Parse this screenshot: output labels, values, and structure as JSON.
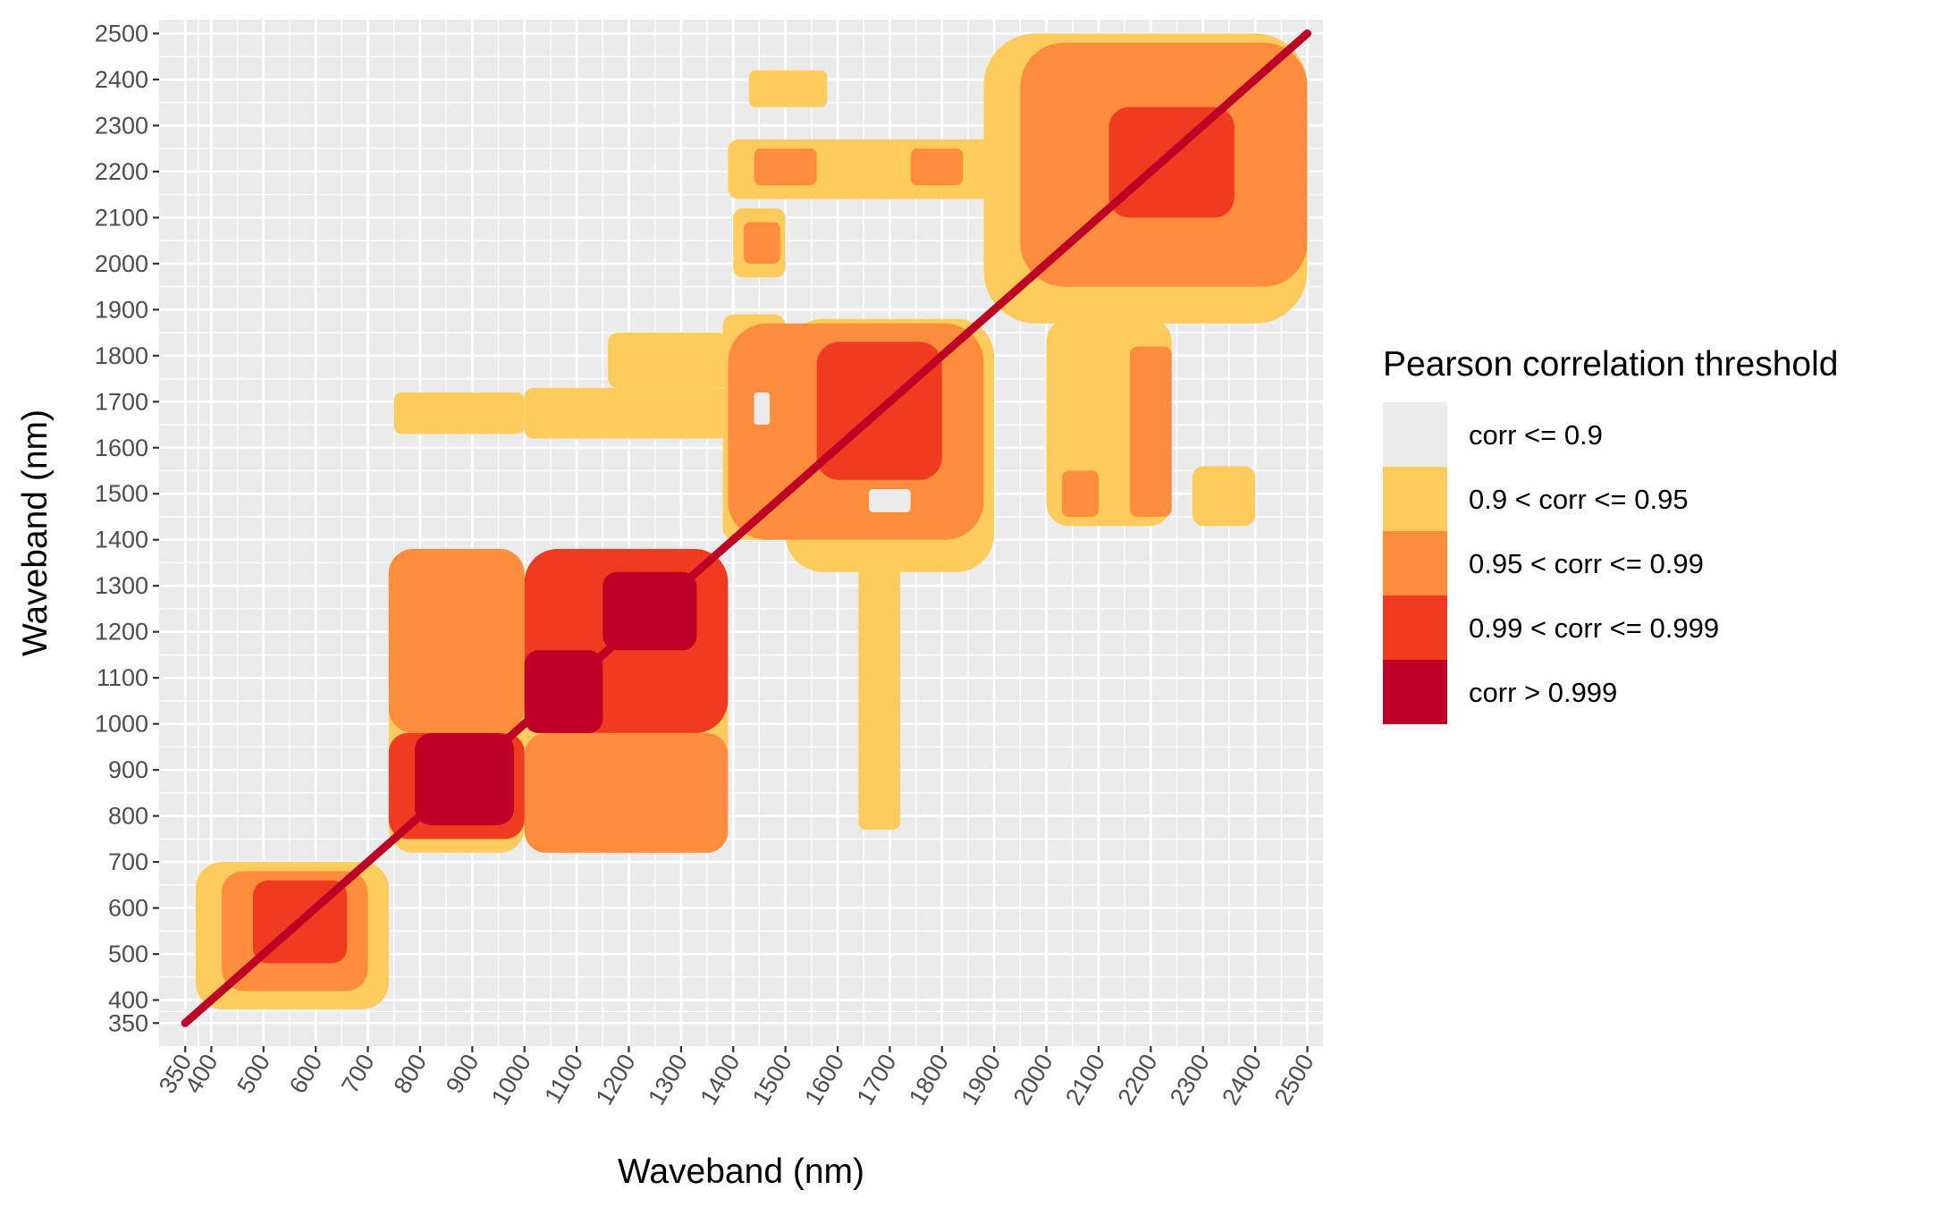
{
  "chart_data": {
    "type": "heatmap",
    "title": "",
    "xlabel": "Waveband (nm)",
    "ylabel": "Waveband (nm)",
    "xlim": [
      300,
      2530
    ],
    "ylim": [
      300,
      2530
    ],
    "x_ticks": [
      "350",
      "400",
      "500",
      "600",
      "700",
      "800",
      "900",
      "1000",
      "1100",
      "1200",
      "1300",
      "1400",
      "1500",
      "1600",
      "1700",
      "1800",
      "1900",
      "2000",
      "2100",
      "2200",
      "2300",
      "2400",
      "2500"
    ],
    "y_ticks": [
      "350",
      "400",
      "500",
      "600",
      "700",
      "800",
      "900",
      "1000",
      "1100",
      "1200",
      "1300",
      "1400",
      "1500",
      "1600",
      "1700",
      "1800",
      "1900",
      "2000",
      "2100",
      "2200",
      "2300",
      "2400",
      "2500"
    ],
    "grid": true,
    "legend": {
      "title": "Pearson correlation threshold",
      "placement": "right",
      "entries": [
        {
          "label": "corr <= 0.9",
          "color": "#ebebeb"
        },
        {
          "label": "0.9 < corr <= 0.95",
          "color": "#fecc5c"
        },
        {
          "label": "0.95 < corr <= 0.99",
          "color": "#fd8d3c"
        },
        {
          "label": "0.99 < corr <= 0.999",
          "color": "#f03b20"
        },
        {
          "label": "corr > 0.999",
          "color": "#bd0026"
        }
      ]
    },
    "regions": [
      {
        "level": 1,
        "shape": "rect",
        "x": [
          740,
          1000
        ],
        "y": [
          720,
          1380
        ]
      },
      {
        "level": 1,
        "shape": "rect",
        "x": [
          1000,
          1390
        ],
        "y": [
          720,
          1380
        ]
      },
      {
        "level": 1,
        "shape": "rect",
        "x": [
          1500,
          1900
        ],
        "y": [
          1330,
          1880
        ]
      },
      {
        "level": 1,
        "shape": "rect",
        "x": [
          1380,
          1500
        ],
        "y": [
          1400,
          1890
        ]
      },
      {
        "level": 1,
        "shape": "rect",
        "x": [
          1640,
          1720
        ],
        "y": [
          770,
          1400
        ]
      },
      {
        "level": 1,
        "shape": "rect",
        "x": [
          750,
          1000
        ],
        "y": [
          1630,
          1720
        ]
      },
      {
        "level": 1,
        "shape": "rect",
        "x": [
          1000,
          1390
        ],
        "y": [
          1620,
          1730
        ]
      },
      {
        "level": 1,
        "shape": "rect",
        "x": [
          1160,
          1390
        ],
        "y": [
          1730,
          1850
        ]
      },
      {
        "level": 1,
        "shape": "rect",
        "x": [
          2000,
          2240
        ],
        "y": [
          1430,
          1880
        ]
      },
      {
        "level": 1,
        "shape": "rect",
        "x": [
          2280,
          2400
        ],
        "y": [
          1430,
          1560
        ]
      },
      {
        "level": 1,
        "shape": "rect",
        "x": [
          1390,
          1900
        ],
        "y": [
          2140,
          2270
        ]
      },
      {
        "level": 1,
        "shape": "rect",
        "x": [
          1400,
          1500
        ],
        "y": [
          1970,
          2120
        ]
      },
      {
        "level": 1,
        "shape": "rect",
        "x": [
          1430,
          1580
        ],
        "y": [
          2340,
          2420
        ]
      },
      {
        "level": 1,
        "shape": "rect",
        "x": [
          1880,
          2500
        ],
        "y": [
          1870,
          2500
        ]
      },
      {
        "level": 1,
        "shape": "rect",
        "x": [
          370,
          740
        ],
        "y": [
          380,
          700
        ]
      },
      {
        "level": 2,
        "shape": "rect",
        "x": [
          740,
          1000
        ],
        "y": [
          980,
          1380
        ]
      },
      {
        "level": 2,
        "shape": "rect",
        "x": [
          1000,
          1390
        ],
        "y": [
          720,
          980
        ]
      },
      {
        "level": 2,
        "shape": "rect",
        "x": [
          1390,
          1880
        ],
        "y": [
          1400,
          1870
        ]
      },
      {
        "level": 2,
        "shape": "rect",
        "x": [
          1950,
          2500
        ],
        "y": [
          1950,
          2480
        ]
      },
      {
        "level": 2,
        "shape": "rect",
        "x": [
          2030,
          2100
        ],
        "y": [
          1450,
          1550
        ]
      },
      {
        "level": 2,
        "shape": "rect",
        "x": [
          2160,
          2240
        ],
        "y": [
          1450,
          1820
        ]
      },
      {
        "level": 2,
        "shape": "rect",
        "x": [
          1440,
          1560
        ],
        "y": [
          2170,
          2250
        ]
      },
      {
        "level": 2,
        "shape": "rect",
        "x": [
          1420,
          1490
        ],
        "y": [
          2000,
          2090
        ]
      },
      {
        "level": 2,
        "shape": "rect",
        "x": [
          1740,
          1840
        ],
        "y": [
          2170,
          2250
        ]
      },
      {
        "level": 2,
        "shape": "rect",
        "x": [
          420,
          700
        ],
        "y": [
          420,
          680
        ]
      },
      {
        "level": 3,
        "shape": "rect",
        "x": [
          740,
          1000
        ],
        "y": [
          750,
          980
        ]
      },
      {
        "level": 3,
        "shape": "rect",
        "x": [
          1000,
          1390
        ],
        "y": [
          980,
          1380
        ]
      },
      {
        "level": 3,
        "shape": "rect",
        "x": [
          1560,
          1800
        ],
        "y": [
          1530,
          1830
        ]
      },
      {
        "level": 3,
        "shape": "rect",
        "x": [
          2120,
          2360
        ],
        "y": [
          2100,
          2340
        ]
      },
      {
        "level": 3,
        "shape": "rect",
        "x": [
          480,
          660
        ],
        "y": [
          480,
          660
        ]
      },
      {
        "level": 4,
        "shape": "rect",
        "x": [
          790,
          980
        ],
        "y": [
          780,
          980
        ]
      },
      {
        "level": 4,
        "shape": "rect",
        "x": [
          1000,
          1150
        ],
        "y": [
          980,
          1160
        ]
      },
      {
        "level": 4,
        "shape": "rect",
        "x": [
          1150,
          1330
        ],
        "y": [
          1160,
          1330
        ]
      },
      {
        "level": 4,
        "shape": "diagonal",
        "from": 350,
        "to": 2500
      },
      {
        "level": 0,
        "shape": "rect",
        "x": [
          1440,
          1470
        ],
        "y": [
          1650,
          1720
        ]
      },
      {
        "level": 0,
        "shape": "rect",
        "x": [
          1660,
          1740
        ],
        "y": [
          1460,
          1510
        ]
      }
    ]
  }
}
